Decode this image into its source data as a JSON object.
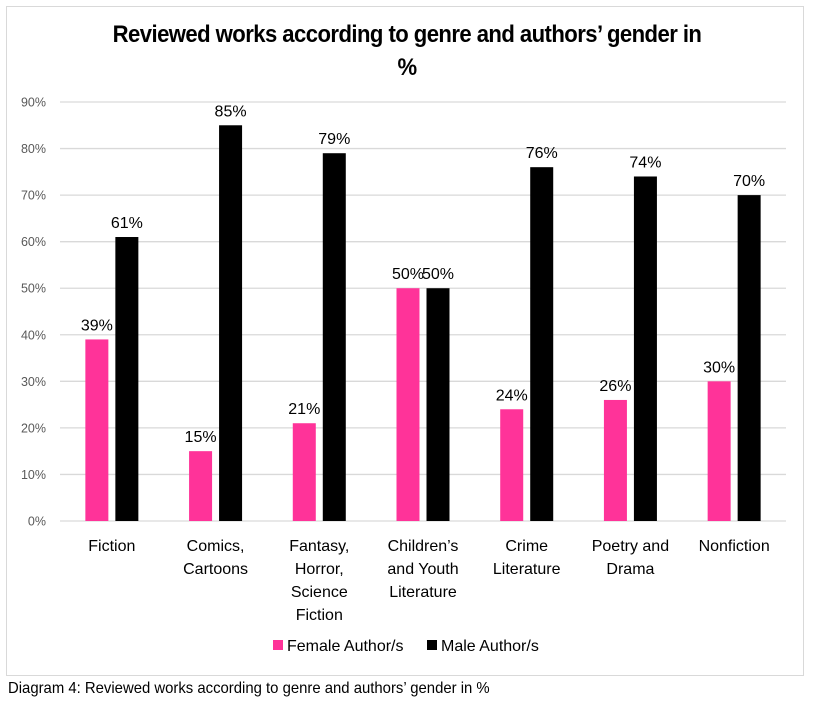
{
  "caption": "Diagram 4: Reviewed works according to genre and authors’ gender in %",
  "chart_data": {
    "type": "bar",
    "title": "Reviewed works according to genre and authors’ gender in %",
    "xlabel": "",
    "ylabel": "",
    "ylim": [
      0,
      90
    ],
    "yticks": [
      0,
      10,
      20,
      30,
      40,
      50,
      60,
      70,
      80,
      90
    ],
    "ytick_labels": [
      "0%",
      "10%",
      "20%",
      "30%",
      "40%",
      "50%",
      "60%",
      "70%",
      "80%",
      "90%"
    ],
    "grid": true,
    "legend_position": "bottom",
    "categories": [
      [
        "Fiction"
      ],
      [
        "Comics,",
        "Cartoons"
      ],
      [
        "Fantasy,",
        "Horror,",
        "Science",
        "Fiction"
      ],
      [
        "Children’s",
        "and Youth",
        "Literature"
      ],
      [
        "Crime",
        "Literature"
      ],
      [
        "Poetry and",
        "Drama"
      ],
      [
        "Nonfiction"
      ]
    ],
    "series": [
      {
        "name": "Female Author/s",
        "color": "#ff3399",
        "values": [
          39,
          15,
          21,
          50,
          24,
          26,
          30
        ],
        "labels": [
          "39%",
          "15%",
          "21%",
          "50%",
          "24%",
          "26%",
          "30%"
        ]
      },
      {
        "name": "Male Author/s",
        "color": "#000000",
        "values": [
          61,
          85,
          79,
          50,
          76,
          74,
          70
        ],
        "labels": [
          "61%",
          "85%",
          "79%",
          "50%",
          "76%",
          "74%",
          "70%"
        ]
      }
    ],
    "colors": {
      "gridline": "#d9d9d9",
      "tick_text": "#595959",
      "frame": "#d9d9d9"
    }
  }
}
